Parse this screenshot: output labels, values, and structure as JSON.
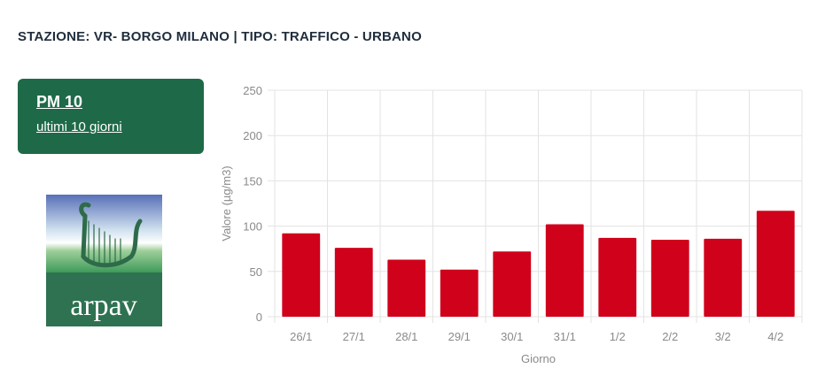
{
  "header": {
    "station_title": "STAZIONE: VR- BORGO MILANO | TIPO: TRAFFICO - URBANO"
  },
  "card": {
    "title": "PM 10",
    "subtitle": "ultimi 10 giorni"
  },
  "logo": {
    "text": "arpav",
    "icon": "harp-icon"
  },
  "colors": {
    "card_bg": "#1e6a48",
    "bar": "#d0021b",
    "grid": "#e3e3e3",
    "axis_text": "#8a8a8a"
  },
  "chart_data": {
    "type": "bar",
    "categories": [
      "26/1",
      "27/1",
      "28/1",
      "29/1",
      "30/1",
      "31/1",
      "1/2",
      "2/2",
      "3/2",
      "4/2"
    ],
    "values": [
      92,
      76,
      63,
      52,
      72,
      102,
      87,
      85,
      86,
      117
    ],
    "xlabel": "Giorno",
    "ylabel": "Valore (µg/m3)",
    "ylim": [
      0,
      250
    ],
    "yticks": [
      0,
      50,
      100,
      150,
      200,
      250
    ],
    "grid": true
  }
}
